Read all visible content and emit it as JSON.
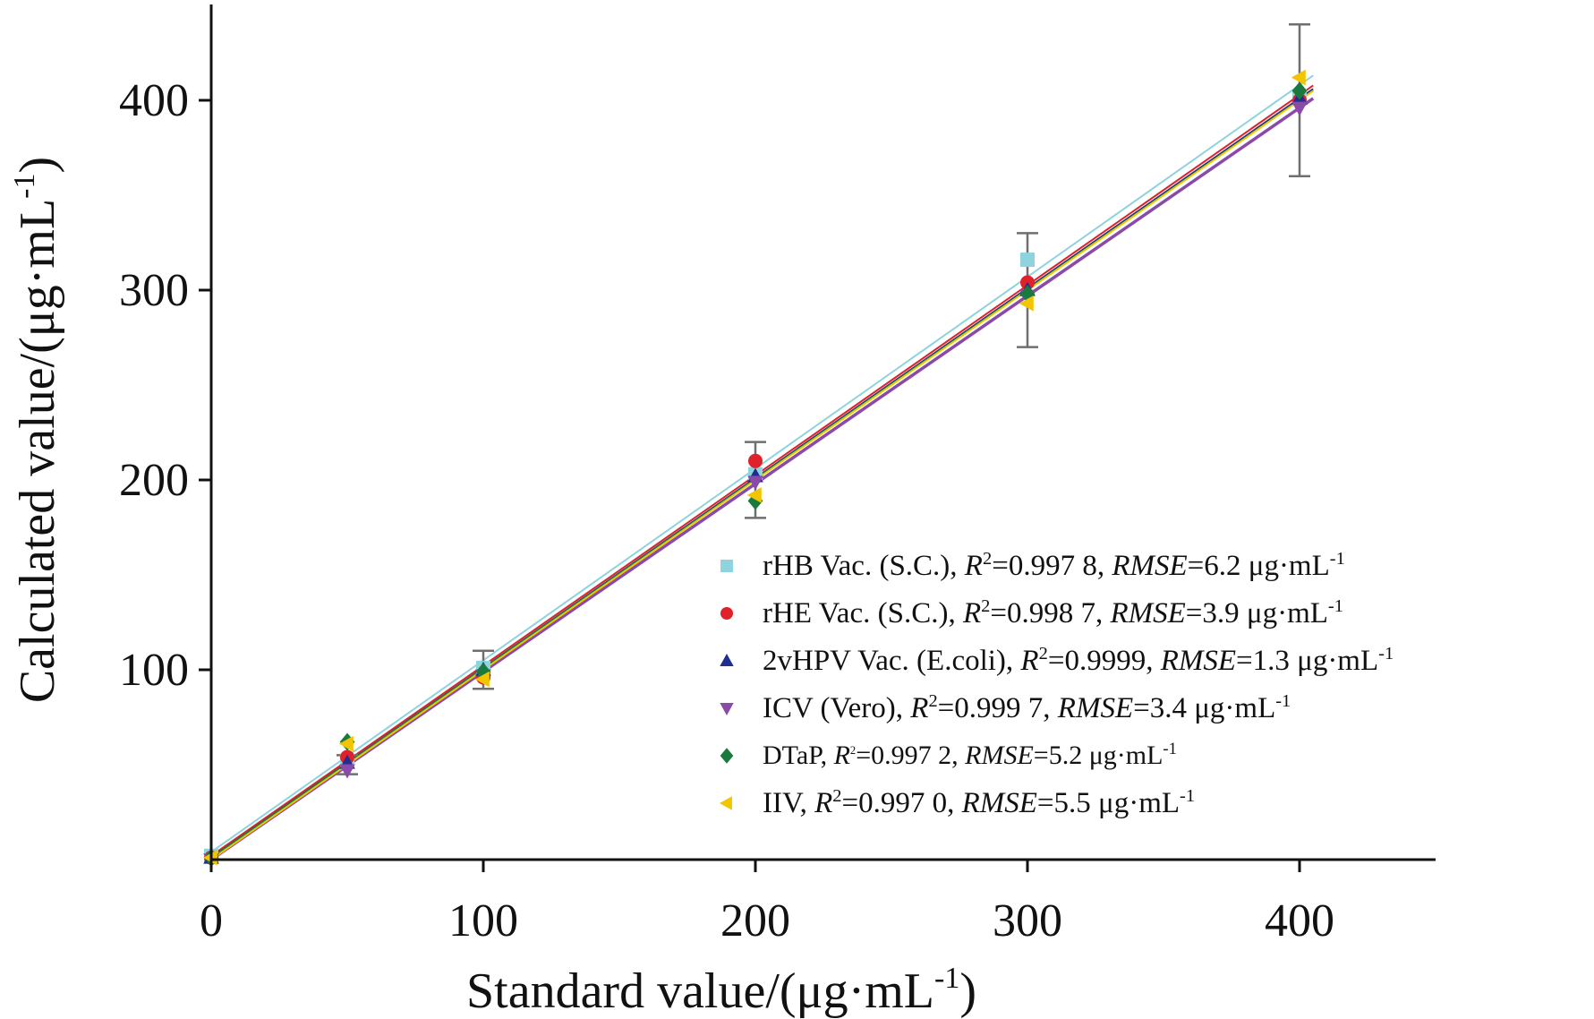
{
  "chart_data": {
    "type": "scatter",
    "xlabel": {
      "main": "Standard value/(μg·mL",
      "sup": "-1",
      "end": ")"
    },
    "ylabel": {
      "main": "Calculated value/(μg·mL",
      "sup": "-1",
      "end": ")"
    },
    "xlim": [
      0,
      450
    ],
    "ylim": [
      0,
      450
    ],
    "xticks": [
      0,
      100,
      200,
      300,
      400
    ],
    "yticks": [
      100,
      200,
      300,
      400
    ],
    "x": [
      0,
      50,
      100,
      200,
      300,
      400
    ],
    "error_bars": [
      {
        "x": 0,
        "low": 0,
        "high": 0
      },
      {
        "x": 50,
        "low": 45,
        "high": 55
      },
      {
        "x": 100,
        "low": 90,
        "high": 110
      },
      {
        "x": 200,
        "low": 180,
        "high": 220
      },
      {
        "x": 300,
        "low": 270,
        "high": 330
      },
      {
        "x": 400,
        "low": 360,
        "high": 440
      }
    ],
    "series": [
      {
        "name": "rHB Vac. (S.C.)",
        "r2": "0.997 8",
        "rmse": "6.2",
        "color": "#8ed3dd",
        "marker": "square",
        "values": [
          2,
          52,
          101,
          203,
          316,
          402
        ],
        "fit": {
          "slope": 1.01,
          "intercept": 4
        }
      },
      {
        "name": "rHE Vac. (S.C.)",
        "r2": "0.998 7",
        "rmse": "3.9",
        "color": "#e0202a",
        "marker": "circle",
        "values": [
          1,
          54,
          96,
          210,
          304,
          400
        ],
        "fit": {
          "slope": 1.002,
          "intercept": 2
        }
      },
      {
        "name": "2vHPV Vac. (E.coli)",
        "r2": "0.9999",
        "rmse": "1.3",
        "color": "#1f2f8f",
        "marker": "triangle-up",
        "values": [
          1,
          51,
          100,
          202,
          300,
          401
        ],
        "fit": {
          "slope": 1.0,
          "intercept": 1
        }
      },
      {
        "name": "ICV (Vero)",
        "r2": "0.999 7",
        "rmse": "3.4",
        "color": "#8a4aa8",
        "marker": "triangle-down",
        "values": [
          0,
          47,
          97,
          199,
          297,
          396
        ],
        "fit": {
          "slope": 0.99,
          "intercept": 0
        }
      },
      {
        "name": "DTaP",
        "r2": "0.997 2",
        "rmse": "5.2",
        "color": "#1a7a3e",
        "marker": "diamond",
        "values": [
          1,
          62,
          99,
          189,
          298,
          405
        ],
        "fit": {
          "slope": 0.998,
          "intercept": 1
        }
      },
      {
        "name": "IIV",
        "r2": "0.997 0",
        "rmse": "5.5",
        "color": "#f2c500",
        "marker": "triangle-left",
        "values": [
          1,
          61,
          95,
          192,
          293,
          412
        ],
        "fit": {
          "slope": 1.0,
          "intercept": 0
        }
      }
    ]
  },
  "legend": {
    "unit": "μg·mL",
    "unit_sup": "-1",
    "r": "R",
    "r_sup": "2",
    "rmse": "RMSE"
  }
}
